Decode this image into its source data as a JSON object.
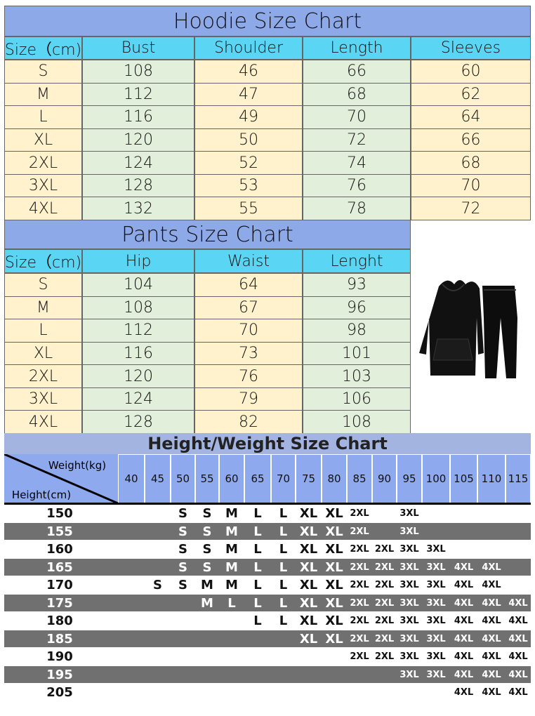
{
  "hoodie": {
    "title": "Hoodie Size Chart",
    "headers": [
      "Size（cm)",
      "Bust",
      "Shoulder",
      "Length",
      "Sleeves"
    ],
    "rows": [
      [
        "S",
        108,
        46,
        66,
        60
      ],
      [
        "M",
        112,
        47,
        68,
        62
      ],
      [
        "L",
        116,
        49,
        70,
        64
      ],
      [
        "XL",
        120,
        50,
        72,
        66
      ],
      [
        "2XL",
        124,
        52,
        74,
        68
      ],
      [
        "3XL",
        128,
        53,
        76,
        70
      ],
      [
        "4XL",
        132,
        55,
        78,
        72
      ]
    ]
  },
  "pants": {
    "title": "Pants Size Chart",
    "headers": [
      "Size（cm)",
      "Hip",
      "Waist",
      "Lenght"
    ],
    "rows": [
      [
        "S",
        104,
        64,
        93
      ],
      [
        "M",
        108,
        67,
        96
      ],
      [
        "L",
        112,
        70,
        98
      ],
      [
        "XL",
        116,
        73,
        101
      ],
      [
        "2XL",
        120,
        76,
        103
      ],
      [
        "3XL",
        124,
        79,
        106
      ],
      [
        "4XL",
        128,
        82,
        108
      ]
    ]
  },
  "height_weight": {
    "title": "Height/Weight Size Chart",
    "weight_label": "Weight(kg)",
    "height_label": "Height(cm)",
    "weights": [
      40,
      45,
      50,
      55,
      60,
      65,
      70,
      75,
      80,
      85,
      90,
      95,
      100,
      105,
      110,
      115
    ],
    "rows": [
      {
        "height": 150,
        "sizes": [
          null,
          null,
          "S",
          "S",
          "M",
          "L",
          "L",
          "XL",
          "XL",
          "2XL",
          null,
          "3XL",
          null,
          null,
          null,
          null
        ]
      },
      {
        "height": 155,
        "sizes": [
          null,
          null,
          "S",
          "S",
          "M",
          "L",
          "L",
          "XL",
          "XL",
          "2XL",
          null,
          "3XL",
          null,
          null,
          null,
          null
        ]
      },
      {
        "height": 160,
        "sizes": [
          null,
          null,
          "S",
          "S",
          "M",
          "L",
          "L",
          "XL",
          "XL",
          "2XL",
          "2XL",
          "3XL",
          "3XL",
          null,
          null,
          null
        ]
      },
      {
        "height": 165,
        "sizes": [
          null,
          null,
          "S",
          "S",
          "M",
          "L",
          "L",
          "XL",
          "XL",
          "2XL",
          "2XL",
          "3XL",
          "3XL",
          "4XL",
          "4XL",
          null
        ]
      },
      {
        "height": 170,
        "sizes": [
          null,
          "S",
          "S",
          "M",
          "M",
          "L",
          "L",
          "XL",
          "XL",
          "2XL",
          "2XL",
          "3XL",
          "3XL",
          "4XL",
          "4XL",
          null
        ]
      },
      {
        "height": 175,
        "sizes": [
          null,
          null,
          null,
          "M",
          "L",
          "L",
          "L",
          "XL",
          "XL",
          "2XL",
          "2XL",
          "3XL",
          "3XL",
          "4XL",
          "4XL",
          "4XL"
        ]
      },
      {
        "height": 180,
        "sizes": [
          null,
          null,
          null,
          null,
          null,
          "L",
          "L",
          "XL",
          "XL",
          "2XL",
          "2XL",
          "3XL",
          "3XL",
          "4XL",
          "4XL",
          "4XL"
        ]
      },
      {
        "height": 185,
        "sizes": [
          null,
          null,
          null,
          null,
          null,
          null,
          null,
          "XL",
          "XL",
          "2XL",
          "2XL",
          "3XL",
          "3XL",
          "4XL",
          "4XL",
          "4XL"
        ]
      },
      {
        "height": 190,
        "sizes": [
          null,
          null,
          null,
          null,
          null,
          null,
          null,
          null,
          null,
          "2XL",
          "2XL",
          "3XL",
          "3XL",
          "4XL",
          "4XL",
          "4XL"
        ]
      },
      {
        "height": 195,
        "sizes": [
          null,
          null,
          null,
          null,
          null,
          null,
          null,
          null,
          null,
          null,
          null,
          "3XL",
          "3XL",
          "4XL",
          "4XL",
          "4XL"
        ]
      },
      {
        "height": 205,
        "sizes": [
          null,
          null,
          null,
          null,
          null,
          null,
          null,
          null,
          null,
          null,
          null,
          null,
          null,
          "4XL",
          "4XL",
          "4XL"
        ]
      }
    ]
  }
}
